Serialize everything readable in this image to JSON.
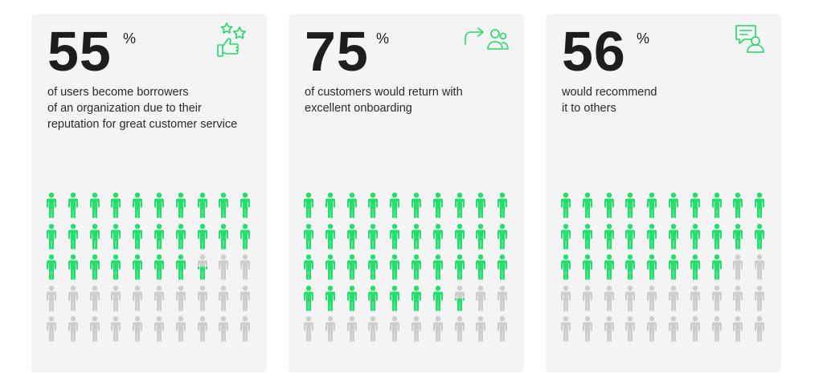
{
  "colors": {
    "filled": "#22e06b",
    "empty": "#cdcdcd",
    "accent": "#22d86a"
  },
  "chart_data": [
    {
      "type": "pictogram",
      "value": 55,
      "unit": "%",
      "total_icons": 50,
      "description": [
        "of users become borrowers",
        "of an organization due to their",
        "reputation for great customer service"
      ],
      "icon": "thumbs-up-stars-icon"
    },
    {
      "type": "pictogram",
      "value": 75,
      "unit": "%",
      "total_icons": 50,
      "description": [
        "of customers would return with",
        "excellent onboarding"
      ],
      "icon": "return-user-icon"
    },
    {
      "type": "pictogram",
      "value": 56,
      "unit": "%",
      "total_icons": 50,
      "description": [
        "would recommend",
        "it to others"
      ],
      "icon": "chat-user-icon"
    }
  ]
}
